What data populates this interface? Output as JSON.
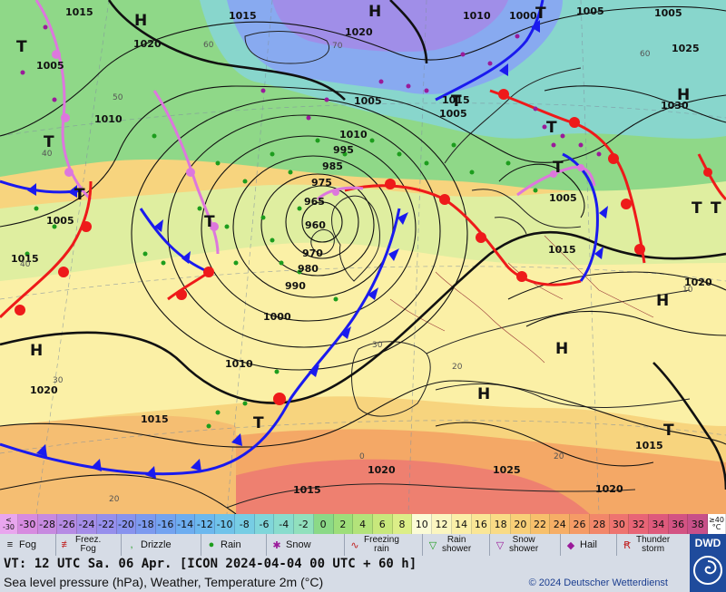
{
  "colors": {
    "cold_front": "#1a1aee",
    "warm_front": "#ee1a1a",
    "occluded_front": "#dd77dd",
    "isobar": "#111111",
    "land_cold": "#8cd47a",
    "land_warm": "#f7c97a"
  },
  "scale": {
    "low_edge_top": "<",
    "low_edge_bottom": "-30",
    "high_edge_top": "≥40",
    "high_edge_bottom": "°C",
    "steps": [
      {
        "label": "-30",
        "color": "#d78be0"
      },
      {
        "label": "-28",
        "color": "#c78ae0"
      },
      {
        "label": "-26",
        "color": "#b68be4"
      },
      {
        "label": "-24",
        "color": "#a58de8"
      },
      {
        "label": "-22",
        "color": "#968fec"
      },
      {
        "label": "-20",
        "color": "#8893ee"
      },
      {
        "label": "-18",
        "color": "#7c9aef"
      },
      {
        "label": "-16",
        "color": "#73a3f0"
      },
      {
        "label": "-14",
        "color": "#6dadf0"
      },
      {
        "label": "-12",
        "color": "#6cb8ee"
      },
      {
        "label": "-10",
        "color": "#70c3ea"
      },
      {
        "label": "-8",
        "color": "#77cde4"
      },
      {
        "label": "-6",
        "color": "#80d6da"
      },
      {
        "label": "-4",
        "color": "#89dccd"
      },
      {
        "label": "-2",
        "color": "#91e0bd"
      },
      {
        "label": "0",
        "color": "#8bd987"
      },
      {
        "label": "2",
        "color": "#9ede7a"
      },
      {
        "label": "4",
        "color": "#b3e37a"
      },
      {
        "label": "6",
        "color": "#c8e87c"
      },
      {
        "label": "8",
        "color": "#dcee88"
      },
      {
        "label": "10",
        "color": "#fbfbd6"
      },
      {
        "label": "12",
        "color": "#fbf6c0"
      },
      {
        "label": "14",
        "color": "#fbefa8"
      },
      {
        "label": "16",
        "color": "#fae696"
      },
      {
        "label": "18",
        "color": "#f9db86"
      },
      {
        "label": "20",
        "color": "#f8cf78"
      },
      {
        "label": "22",
        "color": "#f7c06c"
      },
      {
        "label": "24",
        "color": "#f6ae66"
      },
      {
        "label": "26",
        "color": "#f59b66"
      },
      {
        "label": "28",
        "color": "#f2876a"
      },
      {
        "label": "30",
        "color": "#ee7470"
      },
      {
        "label": "32",
        "color": "#e86576"
      },
      {
        "label": "34",
        "color": "#de5a7c"
      },
      {
        "label": "36",
        "color": "#d35383"
      },
      {
        "label": "38",
        "color": "#c85089"
      }
    ]
  },
  "legend": [
    {
      "label": "Fog",
      "icon": "fog-icon"
    },
    {
      "label": "Freez.\nFog",
      "icon": "freezing-fog-icon"
    },
    {
      "label": "Drizzle",
      "icon": "drizzle-icon"
    },
    {
      "label": "Rain",
      "icon": "rain-icon"
    },
    {
      "label": "Snow",
      "icon": "snow-icon"
    },
    {
      "label": "Freezing\nrain",
      "icon": "freezing-rain-icon"
    },
    {
      "label": "Rain\nshower",
      "icon": "rain-shower-icon"
    },
    {
      "label": "Snow\nshower",
      "icon": "snow-shower-icon"
    },
    {
      "label": "Hail",
      "icon": "hail-icon"
    },
    {
      "label": "Thunder\nstorm",
      "icon": "thunderstorm-icon"
    }
  ],
  "info": {
    "valid_time": "VT: 12 UTC Sa.  06 Apr. [ICON 2024-04-04  00 UTC + 60 h]",
    "description": "Sea level pressure (hPa), Weather, Temperature 2m (°C)",
    "copyright": "© 2024 Deutscher Wetterdienst",
    "logo": "DWD"
  },
  "map": {
    "pressure_centres": [
      {
        "symbol": "H"
      },
      {
        "symbol": "H"
      },
      {
        "symbol": "H"
      },
      {
        "symbol": "H"
      },
      {
        "symbol": "H"
      },
      {
        "symbol": "H"
      },
      {
        "symbol": "H"
      },
      {
        "symbol": "T"
      },
      {
        "symbol": "T"
      },
      {
        "symbol": "T"
      },
      {
        "symbol": "T"
      },
      {
        "symbol": "T"
      },
      {
        "symbol": "T"
      },
      {
        "symbol": "T"
      },
      {
        "symbol": "T"
      },
      {
        "symbol": "T"
      },
      {
        "symbol": "T"
      },
      {
        "symbol": "T"
      },
      {
        "symbol": "T"
      }
    ],
    "isobar_labels": [
      "1015",
      "1015",
      "1020",
      "1020",
      "1005",
      "1010",
      "1005",
      "1015",
      "1010",
      "1000",
      "1005",
      "1005",
      "1025",
      "1030",
      "1005",
      "1010",
      "995",
      "985",
      "975",
      "965",
      "960",
      "970",
      "980",
      "990",
      "1000",
      "1010",
      "1020",
      "1015",
      "1015",
      "1020",
      "1015",
      "1025",
      "1020",
      "1015",
      "1020",
      "1005",
      "1015",
      "1005"
    ],
    "temperature_labels": [
      "60",
      "50",
      "40",
      "70",
      "60",
      "30",
      "30",
      "20",
      "0",
      "20",
      "40",
      "20",
      "10"
    ]
  }
}
